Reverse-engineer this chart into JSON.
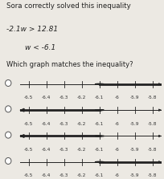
{
  "title1": "Sora correctly solved this inequality",
  "eq1": "-2.1w > 12.81",
  "eq2": "w < -6.1",
  "question": "Which graph matches the inequality?",
  "graphs": [
    {
      "open": true,
      "point": -6.1,
      "direction": "right",
      "filled_ray": true
    },
    {
      "open": false,
      "point": -6.1,
      "direction": "left",
      "filled_ray": true
    },
    {
      "open": true,
      "point": -6.1,
      "direction": "left",
      "filled_ray": true
    },
    {
      "open": false,
      "point": -6.1,
      "direction": "right",
      "filled_ray": true
    }
  ],
  "xlim": [
    -6.55,
    -5.75
  ],
  "xticks": [
    -6.5,
    -6.4,
    -6.3,
    -6.2,
    -6.1,
    -6.0,
    -5.9,
    -5.8
  ],
  "xticklabels": [
    "-6.5",
    "-6.4",
    "-6.3",
    "-6.2",
    "-6.1",
    "-6",
    "-5.9",
    "-5.8"
  ],
  "bg_color": "#ece9e3",
  "line_color": "#222222",
  "tick_fontsize": 4.2,
  "title_fontsize": 6.2,
  "eq_fontsize": 6.5,
  "q_fontsize": 6.0
}
